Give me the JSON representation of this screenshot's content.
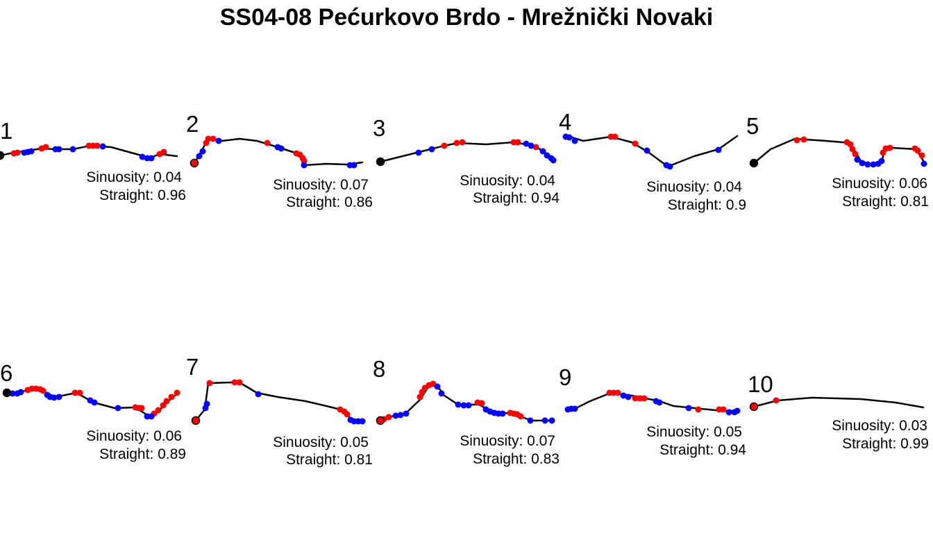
{
  "title": "SS04-08 Pećurkovo Brdo - Mrežnički Novaki",
  "colors": {
    "left_turn": "#ff0000",
    "right_turn": "#0000ff",
    "start": "#000000",
    "route": "#000000"
  },
  "chart_data": {
    "type": "scatter",
    "title": "SS04-08 Pećurkovo Brdo - Mrežnički Novaki",
    "grid": false,
    "panels": [
      {
        "id": "1",
        "sinuosity_label": "Sinuosity: 0.04",
        "straight_label": "Straight: 0.96",
        "start_color": "black",
        "route": [
          [
            0,
            224
          ],
          [
            20,
            220
          ],
          [
            60,
            214
          ],
          [
            80,
            215
          ],
          [
            105,
            215
          ],
          [
            130,
            210
          ],
          [
            160,
            212
          ],
          [
            200,
            223
          ],
          [
            215,
            228
          ],
          [
            230,
            222
          ],
          [
            255,
            225
          ]
        ],
        "red": [
          [
            20,
            221
          ],
          [
            25,
            220
          ],
          [
            60,
            214
          ],
          [
            66,
            212
          ],
          [
            128,
            210
          ],
          [
            134,
            210
          ],
          [
            140,
            210
          ],
          [
            230,
            222
          ],
          [
            236,
            219
          ]
        ],
        "blue": [
          [
            35,
            220
          ],
          [
            40,
            219
          ],
          [
            45,
            218
          ],
          [
            80,
            215
          ],
          [
            85,
            215
          ],
          [
            105,
            215
          ],
          [
            148,
            211
          ],
          [
            205,
            226
          ],
          [
            212,
            228
          ],
          [
            218,
            228
          ]
        ]
      },
      {
        "id": "2",
        "sinuosity_label": "Sinuosity: 0.07",
        "straight_label": "Straight: 0.86",
        "start_color": "red",
        "route": [
          [
            280,
            235
          ],
          [
            290,
            218
          ],
          [
            297,
            205
          ],
          [
            305,
            200
          ],
          [
            320,
            203
          ],
          [
            345,
            200
          ],
          [
            370,
            203
          ],
          [
            400,
            212
          ],
          [
            425,
            220
          ],
          [
            437,
            225
          ],
          [
            440,
            238
          ],
          [
            470,
            236
          ],
          [
            500,
            237
          ],
          [
            522,
            234
          ]
        ],
        "red": [
          [
            297,
            206
          ],
          [
            300,
            200
          ],
          [
            307,
            200
          ],
          [
            385,
            206
          ],
          [
            427,
            221
          ],
          [
            432,
            223
          ],
          [
            436,
            228
          ],
          [
            438,
            232
          ]
        ],
        "blue": [
          [
            287,
            225
          ],
          [
            292,
            218
          ],
          [
            315,
            203
          ],
          [
            400,
            212
          ],
          [
            405,
            214
          ],
          [
            438,
            238
          ],
          [
            504,
            238
          ],
          [
            510,
            238
          ]
        ]
      },
      {
        "id": "3",
        "sinuosity_label": "Sinuosity: 0.04",
        "straight_label": "Straight: 0.94",
        "start_color": "black",
        "route": [
          [
            548,
            233
          ],
          [
            560,
            230
          ],
          [
            600,
            220
          ],
          [
            640,
            210
          ],
          [
            660,
            206
          ],
          [
            700,
            208
          ],
          [
            740,
            205
          ],
          [
            770,
            210
          ],
          [
            785,
            220
          ],
          [
            797,
            230
          ]
        ],
        "red": [
          [
            640,
            210
          ],
          [
            658,
            206
          ],
          [
            666,
            205
          ],
          [
            740,
            205
          ],
          [
            746,
            205
          ],
          [
            772,
            212
          ]
        ],
        "blue": [
          [
            603,
            220
          ],
          [
            622,
            215
          ],
          [
            758,
            207
          ],
          [
            765,
            210
          ],
          [
            782,
            218
          ],
          [
            788,
            224
          ],
          [
            794,
            228
          ],
          [
            797,
            231
          ]
        ]
      },
      {
        "id": "4",
        "sinuosity_label": "Sinuosity: 0.04",
        "straight_label": "Straight: 0.9",
        "start_color": "none",
        "route": [
          [
            815,
            195
          ],
          [
            840,
            203
          ],
          [
            880,
            197
          ],
          [
            910,
            205
          ],
          [
            935,
            220
          ],
          [
            962,
            240
          ],
          [
            1000,
            225
          ],
          [
            1035,
            215
          ],
          [
            1062,
            196
          ]
        ],
        "red": [
          [
            880,
            197
          ],
          [
            886,
            197
          ],
          [
            915,
            207
          ]
        ],
        "blue": [
          [
            815,
            197
          ],
          [
            820,
            198
          ],
          [
            828,
            203
          ],
          [
            932,
            217
          ],
          [
            960,
            238
          ],
          [
            965,
            240
          ],
          [
            1035,
            216
          ]
        ]
      },
      {
        "id": "5",
        "sinuosity_label": "Sinuosity: 0.06",
        "straight_label": "Straight: 0.81",
        "start_color": "black",
        "route": [
          [
            1086,
            235
          ],
          [
            1110,
            215
          ],
          [
            1145,
            200
          ],
          [
            1190,
            203
          ],
          [
            1225,
            206
          ],
          [
            1230,
            215
          ],
          [
            1240,
            232
          ],
          [
            1255,
            237
          ],
          [
            1270,
            232
          ],
          [
            1275,
            216
          ],
          [
            1285,
            213
          ],
          [
            1320,
            215
          ],
          [
            1332,
            235
          ]
        ],
        "red": [
          [
            1148,
            202
          ],
          [
            1158,
            201
          ],
          [
            1220,
            205
          ],
          [
            1225,
            208
          ],
          [
            1228,
            215
          ],
          [
            1232,
            222
          ],
          [
            1272,
            220
          ],
          [
            1276,
            214
          ],
          [
            1282,
            213
          ],
          [
            1318,
            214
          ],
          [
            1322,
            217
          ],
          [
            1328,
            224
          ]
        ],
        "blue": [
          [
            1235,
            230
          ],
          [
            1242,
            235
          ],
          [
            1250,
            237
          ],
          [
            1258,
            237
          ],
          [
            1265,
            236
          ],
          [
            1270,
            232
          ],
          [
            1331,
            236
          ]
        ]
      },
      {
        "id": "6",
        "sinuosity_label": "Sinuosity: 0.06",
        "straight_label": "Straight: 0.89",
        "start_color": "black",
        "route": [
          [
            10,
            566
          ],
          [
            30,
            565
          ],
          [
            45,
            560
          ],
          [
            65,
            565
          ],
          [
            80,
            572
          ],
          [
            110,
            566
          ],
          [
            135,
            580
          ],
          [
            165,
            588
          ],
          [
            195,
            587
          ],
          [
            215,
            600
          ],
          [
            225,
            596
          ],
          [
            240,
            580
          ],
          [
            258,
            565
          ]
        ],
        "red": [
          [
            40,
            562
          ],
          [
            46,
            560
          ],
          [
            52,
            560
          ],
          [
            58,
            561
          ],
          [
            62,
            563
          ],
          [
            108,
            566
          ],
          [
            115,
            566
          ],
          [
            195,
            587
          ],
          [
            200,
            588
          ],
          [
            204,
            588
          ],
          [
            222,
            596
          ],
          [
            228,
            591
          ],
          [
            235,
            584
          ],
          [
            240,
            578
          ],
          [
            247,
            572
          ],
          [
            255,
            566
          ]
        ],
        "blue": [
          [
            18,
            567
          ],
          [
            25,
            567
          ],
          [
            30,
            565
          ],
          [
            68,
            569
          ],
          [
            72,
            572
          ],
          [
            78,
            573
          ],
          [
            85,
            572
          ],
          [
            130,
            577
          ],
          [
            136,
            580
          ],
          [
            170,
            588
          ],
          [
            212,
            600
          ],
          [
            218,
            600
          ]
        ]
      },
      {
        "id": "7",
        "sinuosity_label": "Sinuosity: 0.05",
        "straight_label": "Straight: 0.81",
        "start_color": "red",
        "route": [
          [
            282,
            606
          ],
          [
            295,
            590
          ],
          [
            300,
            552
          ],
          [
            335,
            551
          ],
          [
            345,
            551
          ],
          [
            370,
            566
          ],
          [
            400,
            572
          ],
          [
            440,
            578
          ],
          [
            470,
            585
          ],
          [
            490,
            590
          ],
          [
            500,
            597
          ],
          [
            508,
            607
          ],
          [
            525,
            607
          ]
        ],
        "red": [
          [
            302,
            552
          ],
          [
            338,
            551
          ],
          [
            345,
            551
          ],
          [
            490,
            590
          ],
          [
            496,
            593
          ],
          [
            500,
            597
          ]
        ],
        "blue": [
          [
            296,
            588
          ],
          [
            298,
            582
          ],
          [
            372,
            568
          ],
          [
            505,
            605
          ],
          [
            510,
            607
          ],
          [
            516,
            607
          ],
          [
            522,
            607
          ]
        ]
      },
      {
        "id": "8",
        "sinuosity_label": "Sinuosity: 0.07",
        "straight_label": "Straight: 0.83",
        "start_color": "red",
        "route": [
          [
            548,
            606
          ],
          [
            560,
            601
          ],
          [
            585,
            595
          ],
          [
            605,
            576
          ],
          [
            618,
            556
          ],
          [
            630,
            556
          ],
          [
            640,
            570
          ],
          [
            660,
            583
          ],
          [
            690,
            583
          ],
          [
            710,
            594
          ],
          [
            740,
            596
          ],
          [
            765,
            606
          ],
          [
            795,
            606
          ]
        ],
        "red": [
          [
            553,
            604
          ],
          [
            560,
            601
          ],
          [
            605,
            572
          ],
          [
            608,
            565
          ],
          [
            612,
            559
          ],
          [
            618,
            555
          ],
          [
            624,
            553
          ],
          [
            688,
            580
          ],
          [
            694,
            581
          ],
          [
            735,
            595
          ],
          [
            740,
            596
          ],
          [
            745,
            597
          ],
          [
            750,
            600
          ]
        ],
        "blue": [
          [
            570,
            599
          ],
          [
            577,
            598
          ],
          [
            585,
            596
          ],
          [
            630,
            557
          ],
          [
            636,
            567
          ],
          [
            660,
            583
          ],
          [
            668,
            584
          ],
          [
            675,
            584
          ],
          [
            700,
            590
          ],
          [
            706,
            593
          ],
          [
            712,
            595
          ],
          [
            718,
            596
          ],
          [
            724,
            596
          ],
          [
            764,
            606
          ],
          [
            785,
            606
          ],
          [
            795,
            606
          ]
        ]
      },
      {
        "id": "9",
        "sinuosity_label": "Sinuosity: 0.05",
        "straight_label": "Straight: 0.94",
        "start_color": "none",
        "route": [
          [
            815,
            590
          ],
          [
            830,
            588
          ],
          [
            850,
            578
          ],
          [
            880,
            566
          ],
          [
            910,
            570
          ],
          [
            950,
            578
          ],
          [
            970,
            585
          ],
          [
            1000,
            588
          ],
          [
            1020,
            590
          ],
          [
            1040,
            592
          ],
          [
            1062,
            592
          ]
        ],
        "red": [
          [
            878,
            566
          ],
          [
            884,
            566
          ],
          [
            890,
            566
          ],
          [
            915,
            574
          ],
          [
            922,
            574
          ],
          [
            928,
            574
          ],
          [
            1006,
            590
          ],
          [
            1036,
            590
          ],
          [
            1042,
            590
          ]
        ],
        "blue": [
          [
            818,
            590
          ],
          [
            823,
            589
          ],
          [
            828,
            589
          ],
          [
            898,
            570
          ],
          [
            905,
            572
          ],
          [
            945,
            578
          ],
          [
            950,
            580
          ],
          [
            992,
            588
          ],
          [
            1050,
            594
          ],
          [
            1058,
            594
          ],
          [
            1062,
            592
          ]
        ]
      },
      {
        "id": "10",
        "sinuosity_label": "Sinuosity: 0.03",
        "straight_label": "Straight: 0.99",
        "start_color": "red",
        "route": [
          [
            1086,
            586
          ],
          [
            1120,
            577
          ],
          [
            1170,
            573
          ],
          [
            1240,
            575
          ],
          [
            1290,
            580
          ],
          [
            1330,
            587
          ]
        ],
        "red": [
          [
            1118,
            577
          ]
        ],
        "blue": []
      }
    ]
  }
}
